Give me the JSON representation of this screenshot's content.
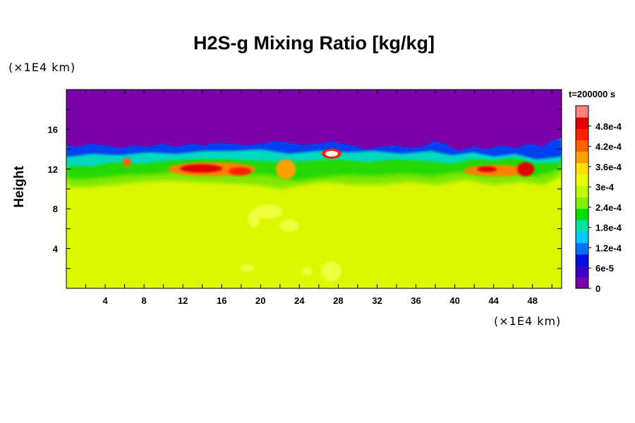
{
  "chart_data": {
    "type": "heatmap",
    "title": "H2S-g Mixing Ratio [kg/kg]",
    "ylabel": "Height",
    "xlabel": "",
    "x_unit": "(×1E4 km)",
    "y_unit": "(×1E4 km)",
    "time_label": "t=200000 s",
    "xlim": [
      0,
      51
    ],
    "ylim": [
      0,
      20
    ],
    "x_ticks": [
      4,
      8,
      12,
      16,
      20,
      24,
      28,
      32,
      36,
      40,
      44,
      48
    ],
    "y_ticks": [
      4,
      8,
      12,
      16
    ],
    "colorbar": {
      "range": [
        0,
        0.00054
      ],
      "tick_labels": [
        "0",
        "6e-5",
        "1.2e-4",
        "1.8e-4",
        "2.4e-4",
        "3e-4",
        "3.6e-4",
        "4.2e-4",
        "4.8e-4"
      ],
      "tick_values": [
        0,
        6e-05,
        0.00012,
        0.00018,
        0.00024,
        0.0003,
        0.00036,
        0.00042,
        0.00048
      ],
      "colors": [
        "#7a00a8",
        "#3a00c8",
        "#0010e0",
        "#0070ff",
        "#00c8ff",
        "#00e0a0",
        "#00e000",
        "#80f000",
        "#c0f800",
        "#e8ff00",
        "#ffe000",
        "#ffa000",
        "#ff6000",
        "#ff2000",
        "#e00000",
        "#ff8080"
      ]
    },
    "fields": {
      "background_value": 0.00034,
      "upper_layer_value": 0,
      "cloud_top_height_approx": 14.5,
      "mixing_band_height_approx": [
        10.5,
        14.5
      ]
    }
  }
}
